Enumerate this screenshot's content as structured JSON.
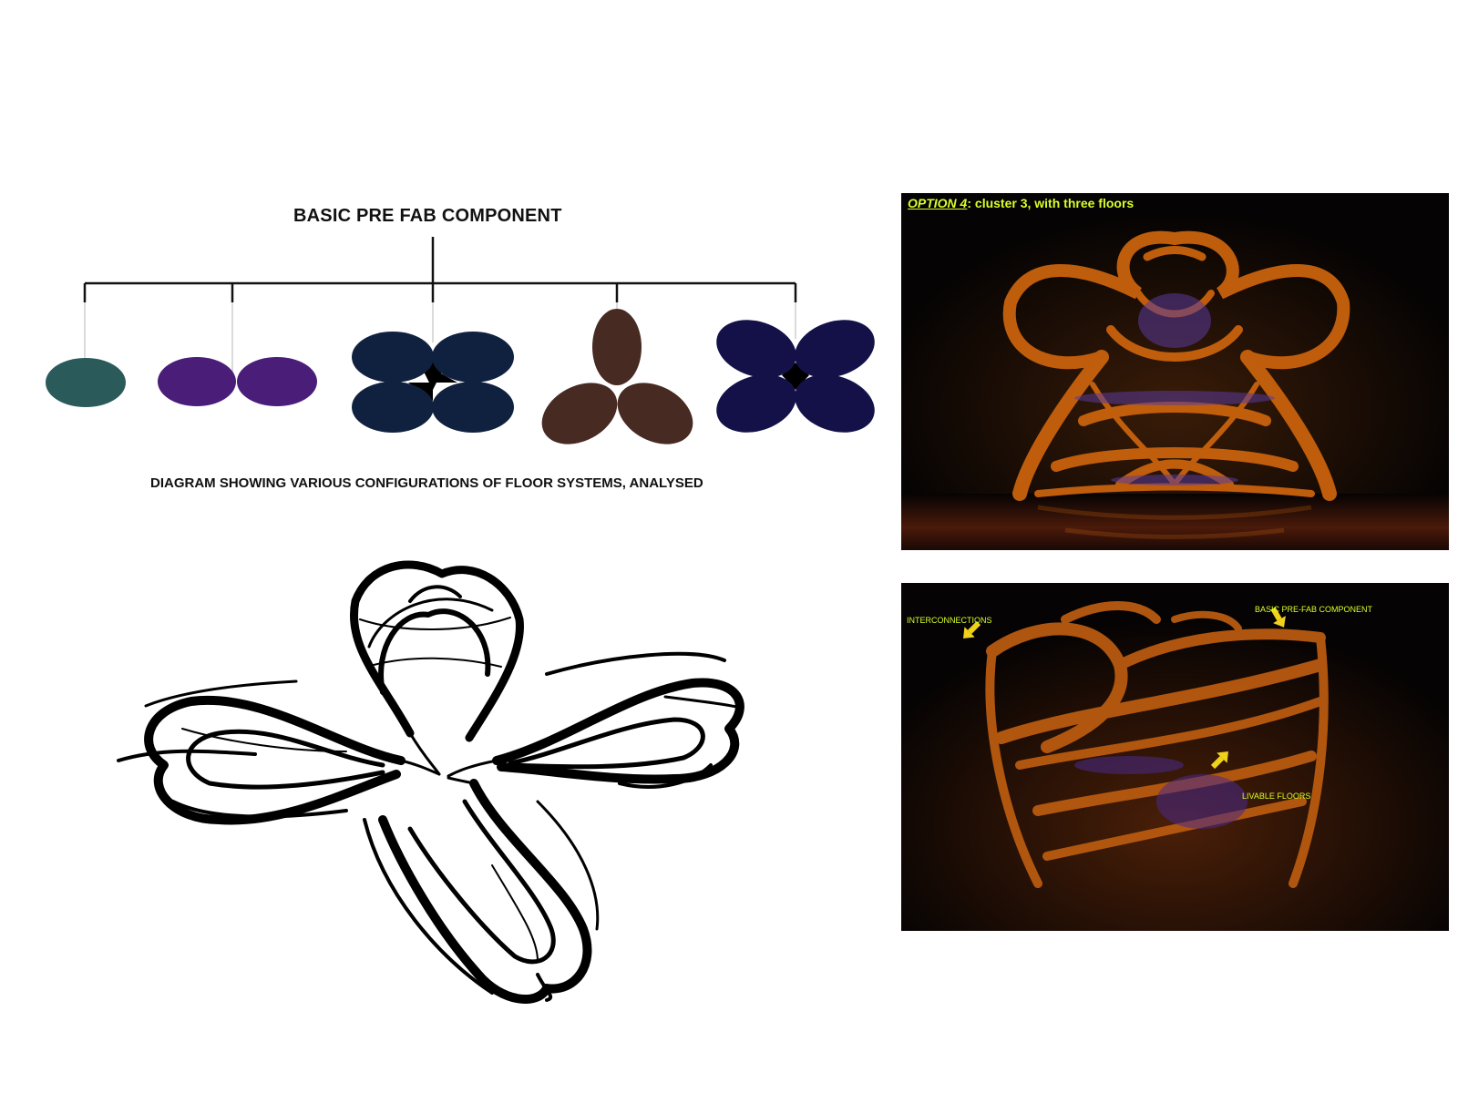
{
  "diagram": {
    "title": "BASIC PRE FAB COMPONENT",
    "caption": "DIAGRAM SHOWING VARIOUS CONFIGURATIONS OF FLOOR SYSTEMS, ANALYSED",
    "configurations": [
      {
        "lobes": 1,
        "color": "#2b5a5a"
      },
      {
        "lobes": 2,
        "color": "#4a1e78"
      },
      {
        "lobes": 4,
        "color": "#10213f"
      },
      {
        "lobes": 3,
        "color": "#472a22"
      },
      {
        "lobes": 4,
        "color": "#141148"
      }
    ]
  },
  "render_top": {
    "option_label": "OPTION 4",
    "title_rest": ": cluster 3, with three floors"
  },
  "render_bottom": {
    "annotations": {
      "interconnections": "INTERCONNECTIONS",
      "prefab": "BASIC PRE-FAB COMPONENT",
      "livable": "LIVABLE FLOORS"
    }
  },
  "colors": {
    "accent_text": "#d9ff2a",
    "arrow": "#f0d21a",
    "structure": "#c8620d"
  }
}
